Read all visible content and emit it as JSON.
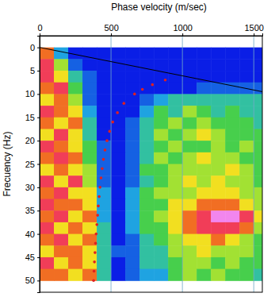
{
  "chart_data": {
    "type": "heatmap",
    "x_label": "Phase velocity (m/sec)",
    "y_label": "Frecuency (Hz)",
    "xlim": [
      0,
      1560
    ],
    "ylim": [
      -2.5,
      52.5
    ],
    "xticks": [
      0,
      500,
      1000,
      1500
    ],
    "yticks": [
      0,
      5,
      10,
      15,
      20,
      25,
      30,
      35,
      40,
      45,
      50
    ],
    "grid": true,
    "x_edges": [
      0,
      100,
      200,
      300,
      400,
      500,
      600,
      700,
      800,
      900,
      1000,
      1100,
      1200,
      1300,
      1400,
      1500,
      1600
    ],
    "y_edges": [
      0,
      2.5,
      5,
      7.5,
      10,
      12.5,
      15,
      17.5,
      20,
      22.5,
      25,
      27.5,
      30,
      32.5,
      35,
      37.5,
      40,
      42.5,
      45,
      47.5,
      50
    ],
    "cells": [
      [
        7,
        2,
        0,
        0,
        0,
        0,
        0,
        0,
        0,
        0,
        0,
        0,
        0,
        0,
        0,
        0
      ],
      [
        8,
        5,
        1,
        0,
        0,
        0,
        0,
        0,
        0,
        0,
        0,
        0,
        0,
        0,
        0,
        0
      ],
      [
        8,
        6,
        3,
        1,
        0,
        0,
        0,
        0,
        0,
        0,
        0,
        0,
        0,
        0,
        0,
        0
      ],
      [
        7,
        8,
        4,
        1,
        0,
        0,
        0,
        0,
        0,
        0,
        0,
        1,
        1,
        1,
        1,
        1
      ],
      [
        6,
        7,
        5,
        1,
        0,
        0,
        0,
        1,
        2,
        3,
        3,
        3,
        3,
        3,
        3,
        3
      ],
      [
        8,
        7,
        6,
        2,
        0,
        0,
        0,
        2,
        4,
        3,
        5,
        4,
        3,
        4,
        3,
        3
      ],
      [
        7,
        6,
        7,
        3,
        0,
        0,
        1,
        3,
        4,
        5,
        4,
        5,
        4,
        4,
        4,
        3
      ],
      [
        6,
        8,
        6,
        3,
        0,
        0,
        1,
        3,
        5,
        4,
        5,
        6,
        5,
        4,
        4,
        4
      ],
      [
        8,
        7,
        6,
        4,
        1,
        0,
        1,
        3,
        4,
        5,
        4,
        4,
        5,
        4,
        5,
        4
      ],
      [
        7,
        8,
        7,
        4,
        1,
        0,
        1,
        3,
        5,
        4,
        5,
        6,
        5,
        5,
        4,
        4
      ],
      [
        6,
        7,
        6,
        5,
        1,
        0,
        1,
        4,
        4,
        5,
        5,
        5,
        5,
        6,
        5,
        4
      ],
      [
        8,
        6,
        8,
        5,
        1,
        0,
        1,
        3,
        4,
        5,
        6,
        5,
        6,
        5,
        5,
        4
      ],
      [
        7,
        8,
        6,
        6,
        2,
        0,
        2,
        4,
        5,
        5,
        5,
        6,
        6,
        6,
        5,
        5
      ],
      [
        8,
        7,
        7,
        6,
        2,
        0,
        2,
        4,
        4,
        6,
        6,
        7,
        7,
        7,
        6,
        5
      ],
      [
        7,
        8,
        6,
        7,
        2,
        0,
        2,
        4,
        5,
        6,
        7,
        8,
        9,
        9,
        8,
        6
      ],
      [
        8,
        6,
        7,
        6,
        3,
        0,
        2,
        4,
        4,
        6,
        7,
        8,
        8,
        8,
        7,
        5
      ],
      [
        7,
        8,
        6,
        7,
        3,
        0,
        1,
        3,
        4,
        5,
        6,
        6,
        7,
        6,
        5,
        4
      ],
      [
        6,
        7,
        7,
        6,
        3,
        1,
        1,
        3,
        3,
        5,
        5,
        6,
        5,
        5,
        5,
        4
      ],
      [
        8,
        6,
        7,
        6,
        3,
        0,
        1,
        3,
        3,
        4,
        5,
        5,
        4,
        5,
        4,
        4
      ],
      [
        7,
        7,
        6,
        7,
        3,
        0,
        1,
        2,
        2,
        4,
        5,
        4,
        5,
        4,
        4,
        3
      ]
    ],
    "series": [
      {
        "type": "scatter",
        "color": "#e02020",
        "marker": "circle",
        "x": [
          880,
          790,
          720,
          665,
          590,
          545,
          512,
          490,
          472,
          458,
          447,
          438,
          430,
          423,
          417,
          411,
          406,
          401,
          396,
          392,
          388,
          384,
          381,
          378
        ],
        "y": [
          7,
          8,
          9,
          10,
          12,
          14,
          16,
          18,
          20,
          22,
          24,
          26,
          28,
          30,
          32,
          34,
          36,
          38,
          40,
          42,
          44,
          46,
          48,
          50
        ]
      },
      {
        "type": "line",
        "color": "#000000",
        "line_style": "solid",
        "x": [
          0,
          1560
        ],
        "y": [
          0,
          9.5
        ]
      }
    ]
  }
}
